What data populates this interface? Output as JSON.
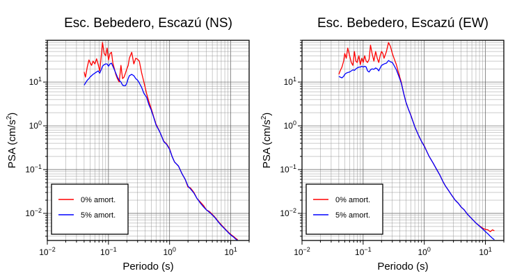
{
  "figure": {
    "background": "#ffffff"
  },
  "chart_data": [
    {
      "type": "line",
      "title": "Esc. Bebedero, Escazú (NS)",
      "xlabel": "Periodo (s)",
      "ylabel_main": "PSA (cm/s",
      "ylabel_sup": "2",
      "ylabel_tail": ")",
      "xscale": "log",
      "yscale": "log",
      "xlim": [
        0.01,
        20
      ],
      "ylim": [
        0.0024,
        90
      ],
      "x_ticks": [
        {
          "value": 0.01,
          "base": "10",
          "exp": "−2"
        },
        {
          "value": 0.1,
          "base": "10",
          "exp": "−1"
        },
        {
          "value": 1,
          "base": "10",
          "exp": "0"
        },
        {
          "value": 10,
          "base": "10",
          "exp": "1"
        }
      ],
      "y_ticks": [
        {
          "value": 0.01,
          "base": "10",
          "exp": "−2"
        },
        {
          "value": 0.1,
          "base": "10",
          "exp": "−1"
        },
        {
          "value": 1,
          "base": "10",
          "exp": "0"
        },
        {
          "value": 10,
          "base": "10",
          "exp": "1"
        }
      ],
      "grid": true,
      "legend_position": "bottom-left",
      "series": [
        {
          "name": "0% amort.",
          "color": "#ff0000",
          "x": [
            0.04,
            0.042,
            0.045,
            0.048,
            0.05,
            0.053,
            0.056,
            0.06,
            0.064,
            0.068,
            0.072,
            0.076,
            0.08,
            0.085,
            0.09,
            0.095,
            0.1,
            0.106,
            0.112,
            0.118,
            0.125,
            0.132,
            0.14,
            0.15,
            0.16,
            0.17,
            0.18,
            0.19,
            0.2,
            0.21,
            0.22,
            0.24,
            0.26,
            0.28,
            0.3,
            0.32,
            0.35,
            0.38,
            0.42,
            0.46,
            0.5,
            0.55,
            0.6,
            0.7,
            0.8,
            0.9,
            1.0,
            1.1,
            1.2,
            1.4,
            1.6,
            1.8,
            2.0,
            2.2,
            2.5,
            2.8,
            3.2,
            3.6,
            4.0,
            4.5,
            5.0,
            5.6,
            6.3,
            7.0,
            8.0,
            9.0,
            10.0,
            11.0,
            12.0,
            13.0
          ],
          "y": [
            17,
            13,
            22,
            32,
            28,
            24,
            30,
            26,
            34,
            25,
            18,
            38,
            80,
            45,
            40,
            60,
            32,
            45,
            48,
            27,
            20,
            15,
            12,
            10,
            24,
            12,
            13,
            16,
            20,
            24,
            35,
            48,
            26,
            35,
            33,
            30,
            16,
            10,
            5.5,
            3.5,
            2.5,
            1.6,
            1.1,
            0.7,
            0.45,
            0.38,
            0.3,
            0.2,
            0.15,
            0.12,
            0.08,
            0.06,
            0.04,
            0.038,
            0.03,
            0.022,
            0.018,
            0.015,
            0.012,
            0.011,
            0.0095,
            0.008,
            0.0065,
            0.0055,
            0.0045,
            0.0038,
            0.0033,
            0.003,
            0.0027,
            0.0025
          ]
        },
        {
          "name": "5% amort.",
          "color": "#0000ff",
          "x": [
            0.04,
            0.042,
            0.045,
            0.048,
            0.05,
            0.053,
            0.056,
            0.06,
            0.064,
            0.068,
            0.072,
            0.076,
            0.08,
            0.085,
            0.09,
            0.095,
            0.1,
            0.106,
            0.112,
            0.118,
            0.125,
            0.132,
            0.14,
            0.15,
            0.16,
            0.17,
            0.18,
            0.19,
            0.2,
            0.21,
            0.22,
            0.24,
            0.26,
            0.28,
            0.3,
            0.32,
            0.35,
            0.38,
            0.42,
            0.46,
            0.5,
            0.55,
            0.6,
            0.7,
            0.8,
            0.9,
            1.0,
            1.1,
            1.2,
            1.4,
            1.6,
            1.8,
            2.0,
            2.2,
            2.5,
            2.8,
            3.2,
            3.6,
            4.0,
            4.5,
            5.0,
            5.6,
            6.3,
            7.0,
            8.0,
            9.0,
            10.0,
            11.0,
            12.0,
            13.0
          ],
          "y": [
            8.5,
            9.5,
            11,
            12,
            13,
            14,
            15,
            16,
            17,
            18,
            16,
            19,
            23,
            25,
            26,
            26,
            23,
            26,
            27,
            23,
            19,
            16,
            13,
            11,
            10,
            8.5,
            8.2,
            8.3,
            9.5,
            12,
            14,
            15,
            14,
            12,
            11,
            9.5,
            7.5,
            5.5,
            4.5,
            3.0,
            2.3,
            1.55,
            1.05,
            0.7,
            0.44,
            0.37,
            0.29,
            0.2,
            0.15,
            0.12,
            0.08,
            0.06,
            0.042,
            0.036,
            0.029,
            0.022,
            0.017,
            0.014,
            0.012,
            0.0105,
            0.0092,
            0.0078,
            0.0063,
            0.0053,
            0.0044,
            0.0037,
            0.0032,
            0.0029,
            0.0026,
            0.0024
          ]
        }
      ]
    },
    {
      "type": "line",
      "title": "Esc. Bebedero, Escazú (EW)",
      "xlabel": "Periodo (s)",
      "ylabel_main": "PSA (cm/s",
      "ylabel_sup": "2",
      "ylabel_tail": ")",
      "xscale": "log",
      "yscale": "log",
      "xlim": [
        0.01,
        20
      ],
      "ylim": [
        0.0024,
        90
      ],
      "x_ticks": [
        {
          "value": 0.01,
          "base": "10",
          "exp": "−2"
        },
        {
          "value": 0.1,
          "base": "10",
          "exp": "−1"
        },
        {
          "value": 1,
          "base": "10",
          "exp": "0"
        },
        {
          "value": 10,
          "base": "10",
          "exp": "1"
        }
      ],
      "y_ticks": [
        {
          "value": 0.01,
          "base": "10",
          "exp": "−2"
        },
        {
          "value": 0.1,
          "base": "10",
          "exp": "−1"
        },
        {
          "value": 1,
          "base": "10",
          "exp": "0"
        },
        {
          "value": 10,
          "base": "10",
          "exp": "1"
        }
      ],
      "grid": true,
      "legend_position": "bottom-left",
      "series": [
        {
          "name": "0% amort.",
          "color": "#ff0000",
          "x": [
            0.04,
            0.042,
            0.045,
            0.048,
            0.05,
            0.053,
            0.056,
            0.06,
            0.064,
            0.068,
            0.072,
            0.076,
            0.08,
            0.085,
            0.09,
            0.095,
            0.1,
            0.106,
            0.112,
            0.118,
            0.125,
            0.132,
            0.14,
            0.15,
            0.16,
            0.17,
            0.18,
            0.19,
            0.2,
            0.21,
            0.22,
            0.24,
            0.26,
            0.28,
            0.3,
            0.32,
            0.35,
            0.38,
            0.42,
            0.46,
            0.5,
            0.55,
            0.6,
            0.7,
            0.8,
            0.9,
            1.0,
            1.1,
            1.2,
            1.4,
            1.6,
            1.8,
            2.0,
            2.2,
            2.5,
            2.8,
            3.2,
            3.6,
            4.0,
            4.5,
            5.0,
            5.6,
            6.3,
            7.0,
            8.0,
            9.0,
            10.0,
            11.0,
            12.0,
            13.0,
            14.0
          ],
          "y": [
            15,
            18,
            22,
            30,
            45,
            35,
            60,
            40,
            28,
            24,
            50,
            30,
            28,
            40,
            25,
            35,
            28,
            40,
            30,
            28,
            33,
            70,
            45,
            30,
            50,
            35,
            28,
            40,
            50,
            45,
            35,
            50,
            80,
            65,
            45,
            35,
            25,
            16,
            10,
            5.5,
            3.5,
            2.4,
            1.8,
            0.95,
            0.62,
            0.44,
            0.35,
            0.26,
            0.2,
            0.14,
            0.1,
            0.075,
            0.055,
            0.043,
            0.033,
            0.026,
            0.02,
            0.017,
            0.014,
            0.012,
            0.0098,
            0.0083,
            0.007,
            0.006,
            0.0052,
            0.0046,
            0.0043,
            0.0042,
            0.0038,
            0.0042,
            0.004
          ]
        },
        {
          "name": "5% amort.",
          "color": "#0000ff",
          "x": [
            0.04,
            0.042,
            0.045,
            0.048,
            0.05,
            0.053,
            0.056,
            0.06,
            0.064,
            0.068,
            0.072,
            0.076,
            0.08,
            0.085,
            0.09,
            0.095,
            0.1,
            0.106,
            0.112,
            0.118,
            0.125,
            0.132,
            0.14,
            0.15,
            0.16,
            0.17,
            0.18,
            0.19,
            0.2,
            0.21,
            0.22,
            0.24,
            0.26,
            0.28,
            0.3,
            0.32,
            0.35,
            0.38,
            0.42,
            0.46,
            0.5,
            0.55,
            0.6,
            0.7,
            0.8,
            0.9,
            1.0,
            1.1,
            1.2,
            1.4,
            1.6,
            1.8,
            2.0,
            2.2,
            2.5,
            2.8,
            3.2,
            3.6,
            4.0,
            4.5,
            5.0,
            5.6,
            6.3,
            7.0,
            8.0,
            9.0,
            10.0,
            11.0,
            12.0,
            13.0,
            14.0
          ],
          "y": [
            13.5,
            13,
            12.5,
            13.5,
            15,
            16,
            16.5,
            17,
            18,
            19,
            18.5,
            20,
            21,
            22,
            22,
            23,
            22,
            23,
            22,
            18,
            17,
            19,
            20,
            19.5,
            21,
            20,
            18,
            21,
            24,
            25,
            26,
            27,
            31,
            29,
            28,
            24,
            19,
            14,
            9.5,
            5.5,
            3.5,
            2.4,
            1.75,
            0.95,
            0.62,
            0.44,
            0.34,
            0.26,
            0.2,
            0.14,
            0.1,
            0.075,
            0.055,
            0.043,
            0.033,
            0.026,
            0.02,
            0.017,
            0.014,
            0.012,
            0.0098,
            0.0083,
            0.007,
            0.006,
            0.0051,
            0.0044,
            0.0038,
            0.0034,
            0.003,
            0.0027,
            0.0025
          ]
        }
      ]
    }
  ]
}
